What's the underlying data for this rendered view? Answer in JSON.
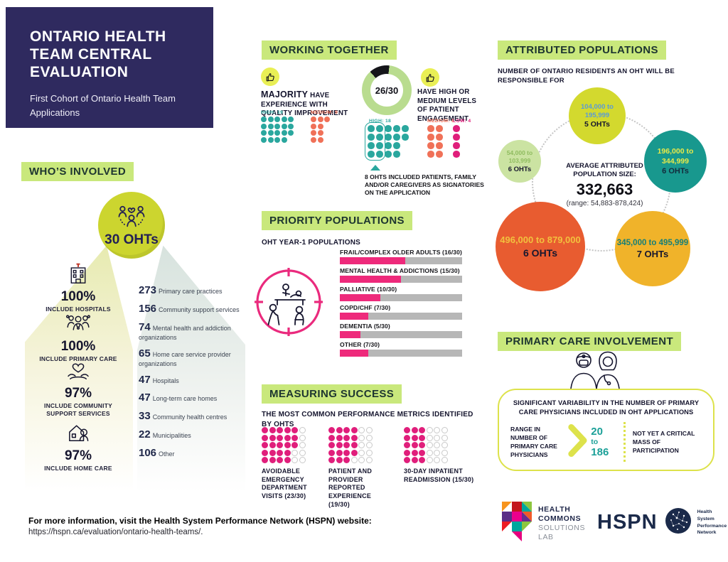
{
  "colors": {
    "navy": "#2f2a5f",
    "heading_bg": "#c9e87c",
    "heading_text": "#1d3530",
    "teal": "#2aa79e",
    "coral": "#f07158",
    "magenta": "#e01e7b",
    "bar_pink": "#ee2a7b",
    "bar_track": "#b7b7b7",
    "chartreuse": "#ccd52f",
    "donut_green": "#b9dc8f",
    "pc_border": "#dde24b"
  },
  "title_block": {
    "title": "ONTARIO HEALTH TEAM CENTRAL EVALUATION",
    "subtitle": "First Cohort of Ontario Health Team Applications"
  },
  "sections": {
    "whos_involved": {
      "heading": "WHO’S INVOLVED",
      "total_label": "30 OHTs",
      "percent_items": [
        {
          "icon": "hospital-icon",
          "value": "100%",
          "label": "INCLUDE HOSPITALS"
        },
        {
          "icon": "primary-care-people-icon",
          "value": "100%",
          "label": "INCLUDE PRIMARY CARE"
        },
        {
          "icon": "heart-hands-icon",
          "value": "97%",
          "label": "INCLUDE COMMUNITY SUPPORT SERVICES"
        },
        {
          "icon": "home-care-icon",
          "value": "97%",
          "label": "INCLUDE HOME CARE"
        }
      ],
      "org_counts": [
        {
          "count": "273",
          "label": "Primary care practices"
        },
        {
          "count": "156",
          "label": "Community support services"
        },
        {
          "count": "74",
          "label": "Mental health and addiction organizations"
        },
        {
          "count": "65",
          "label": "Home care service provider organizations"
        },
        {
          "count": "47",
          "label": "Hospitals"
        },
        {
          "count": "47",
          "label": "Long-term care homes"
        },
        {
          "count": "33",
          "label": "Community health centres"
        },
        {
          "count": "22",
          "label": "Municipalities"
        },
        {
          "count": "106",
          "label": "Other"
        }
      ]
    },
    "working_together": {
      "heading": "WORKING TOGETHER",
      "quality_lead": "MAJORITY",
      "quality_rest": " HAVE EXPERIENCE WITH QUALITY IMPROVEMENT",
      "engagement_text": "HAVE HIGH OR MEDIUM LEVELS OF PATIENT ENGAGEMENT",
      "footnote_lead": "8 OHTS",
      "footnote_rest": " INCLUDED PATIENTS, FAMILY AND/OR CAREGIVERS AS SIGNATORIES ON THE APPLICATION"
    },
    "priority_populations": {
      "heading": "PRIORITY POPULATIONS",
      "subtitle": "OHT YEAR-1 POPULATIONS"
    },
    "measuring_success": {
      "heading": "MEASURING SUCCESS",
      "subtitle": "THE MOST COMMON PERFORMANCE METRICS IDENTIFIED BY OHTS"
    },
    "attributed_populations": {
      "heading": "ATTRIBUTED POPULATIONS",
      "subtitle": "NUMBER OF ONTARIO RESIDENTS AN OHT WILL BE RESPONSIBLE FOR",
      "average_label": "AVERAGE ATTRIBUTED POPULATION SIZE:",
      "average_value": "332,663",
      "average_range": "(range: 54,883-878,424)"
    },
    "primary_care": {
      "heading": "PRIMARY CARE INVOLVEMENT",
      "variability": "SIGNIFICANT VARIABILITY IN THE NUMBER OF PRIMARY CARE PHYSICIANS INCLUDED IN OHT APPLICATIONS",
      "range_label": "RANGE IN NUMBER OF PRIMARY CARE PHYSICIANS",
      "range_from": "20",
      "range_word": "to",
      "range_to": "186",
      "critical_mass": "NOT YET A CRITICAL MASS OF PARTICIPATION"
    }
  },
  "chart_data": [
    {
      "id": "quality_improvement",
      "type": "dot-matrix",
      "title": "MAJORITY have experience with quality improvement",
      "total": 30,
      "series": [
        {
          "name": "HIGH: 19",
          "value": 19,
          "cols": 5,
          "rows": 4,
          "size": 8,
          "gap": 1.5,
          "color": "#2aa79e"
        },
        {
          "name": "MEDIUM: 9",
          "value": 9,
          "cols": 3,
          "rows": 4,
          "size": 8,
          "gap": 1.5,
          "color": "#f07158"
        }
      ]
    },
    {
      "id": "patient_engagement_donut",
      "type": "pie",
      "title": "Have high or medium levels of patient engagement",
      "value": 26,
      "total": 30,
      "label": "26/30",
      "colors": {
        "filled": "#b9dc8f",
        "remainder": "#15151a"
      }
    },
    {
      "id": "patient_engagement_levels",
      "type": "dot-matrix",
      "total": 30,
      "series": [
        {
          "name": "HIGH: 18",
          "value": 18,
          "cols": 5,
          "rows": 4,
          "size": 9.5,
          "gap": 2.5,
          "color": "#2aa79e",
          "highlighted_first": 8
        },
        {
          "name": "MEDIUM: 8",
          "value": 8,
          "cols": 2,
          "rows": 4,
          "size": 9.5,
          "gap": 2.5,
          "color": "#f07158"
        },
        {
          "name": "LOW: 4",
          "value": 4,
          "cols": 1,
          "rows": 4,
          "size": 9.5,
          "gap": 2.5,
          "color": "#e01e7b"
        }
      ],
      "annotation": "8 OHTS included patients, family and/or caregivers as signatories on the application"
    },
    {
      "id": "priority_populations",
      "type": "bar",
      "title": "OHT YEAR-1 POPULATIONS",
      "categories": [
        "FRAIL/COMPLEX OLDER ADULTS (16/30)",
        "MENTAL HEALTH & ADDICTIONS (15/30)",
        "PALLIATIVE (10/30)",
        "COPD/CHF (7/30)",
        "DEMENTIA (5/30)",
        "OTHER (7/30)"
      ],
      "values": [
        16,
        15,
        10,
        7,
        5,
        7
      ],
      "max": 30,
      "bar_color": "#ee2a7b",
      "track_color": "#b7b7b7"
    },
    {
      "id": "attributed_populations",
      "type": "bubble",
      "title": "NUMBER OF ONTARIO RESIDENTS AN OHT WILL BE RESPONSIBLE FOR",
      "bubbles": [
        {
          "range": "104,000 to 195,999",
          "ohts": "5 OHTs",
          "fill": "#d3d92e",
          "text": "#5b9bd5"
        },
        {
          "range": "54,000 to 103,999",
          "ohts": "6 OHTs",
          "fill": "#cbe3a2",
          "text": "#8fbc5f"
        },
        {
          "range": "196,000 to 344,999",
          "ohts": "6 OHTs",
          "fill": "#18988e",
          "text": "#e8ea49"
        },
        {
          "range": "496,000 to 879,000",
          "ohts": "6 OHTs",
          "fill": "#e85c30",
          "text": "#f2c13e"
        },
        {
          "range": "345,000 to 495,999",
          "ohts": "7 OHTs",
          "fill": "#f0b32a",
          "text": "#147f78"
        }
      ],
      "average_label": "AVERAGE ATTRIBUTED POPULATION SIZE:",
      "average": "332,663",
      "range": "(range: 54,883-878,424)"
    },
    {
      "id": "performance_metrics",
      "type": "waffle",
      "title": "THE MOST COMMON PERFORMANCE METRICS IDENTIFIED BY OHTS",
      "total": 30,
      "series": [
        {
          "name": "AVOIDABLE EMERGENCY DEPARTMENT VISITS (23/30)",
          "value": 23,
          "cols": 6,
          "rows": 5,
          "size": 9,
          "gap": 1.5,
          "color": "#e01e7b",
          "empty": "#c9c9c9"
        },
        {
          "name": "PATIENT AND PROVIDER REPORTED EXPERIENCE (19/30)",
          "value": 19,
          "cols": 6,
          "rows": 5,
          "size": 9,
          "gap": 1.5,
          "color": "#e01e7b",
          "empty": "#c9c9c9"
        },
        {
          "name": "30-DAY INPATIENT READMISSION (15/30)",
          "value": 15,
          "cols": 6,
          "rows": 5,
          "size": 9,
          "gap": 1.5,
          "color": "#e01e7b",
          "empty": "#c9c9c9"
        }
      ]
    }
  ],
  "footer": {
    "info_bold": "For more information, visit the Health System Performance Network (HSPN) website:",
    "url": "https://hspn.ca/evaluation/ontario-health-teams/."
  },
  "logos": {
    "health_commons": {
      "line1": "HEALTH",
      "line2": "COMMONS",
      "line3": "SOLUTIONS",
      "line4": "LAB"
    },
    "hspn": {
      "acronym": "HSPN",
      "org1": "Health System",
      "org2": "Performance",
      "org3": "Network"
    }
  }
}
